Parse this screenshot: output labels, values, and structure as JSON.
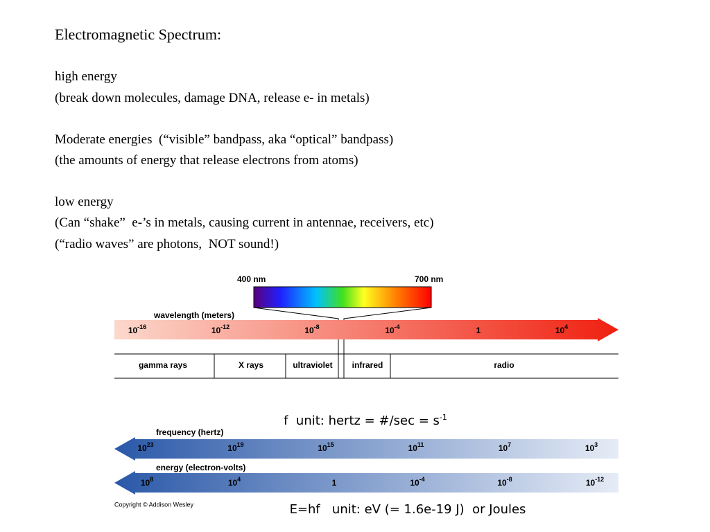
{
  "title": "Electromagnetic Spectrum:",
  "paragraphs": [
    [
      "high energy",
      "(break down molecules, damage DNA, release e- in metals)"
    ],
    [
      "Moderate energies  (“visible” bandpass, aka “optical” bandpass)",
      "(the amounts of energy that release electrons from atoms)"
    ],
    [
      "low energy",
      "(Can “shake”  e-’s in metals, causing current in antennae, receivers, etc)",
      "(“radio waves” are photons,  NOT sound!)"
    ]
  ],
  "diagram": {
    "visible_left": "400 nm",
    "visible_right": "700 nm",
    "wavelength_label": "wavelength (meters)",
    "wavelength_ticks": [
      {
        "base": "10",
        "exp": "-16"
      },
      {
        "base": "10",
        "exp": "-12"
      },
      {
        "base": "10",
        "exp": "-8"
      },
      {
        "base": "10",
        "exp": "-4"
      },
      {
        "base": "1"
      },
      {
        "base": "10",
        "exp": "4"
      }
    ],
    "bands": [
      "gamma rays",
      "X rays",
      "ultraviolet",
      "infrared",
      "radio"
    ],
    "frequency_label": "frequency (hertz)",
    "frequency_ticks": [
      {
        "base": "10",
        "exp": "23"
      },
      {
        "base": "10",
        "exp": "19"
      },
      {
        "base": "10",
        "exp": "15"
      },
      {
        "base": "10",
        "exp": "11"
      },
      {
        "base": "10",
        "exp": "7"
      },
      {
        "base": "10",
        "exp": "3"
      }
    ],
    "energy_label": "energy (electron-volts)",
    "energy_ticks": [
      {
        "base": "10",
        "exp": "8"
      },
      {
        "base": "10",
        "exp": "4"
      },
      {
        "base": "1"
      },
      {
        "base": "10",
        "exp": "-4"
      },
      {
        "base": "10",
        "exp": "-8"
      },
      {
        "base": "10",
        "exp": "-12"
      }
    ],
    "copyright": "Copyright © Addison Wesley"
  },
  "notes": {
    "frequency": {
      "text": "f  unit: hertz = #/sec = s",
      "exp": "-1"
    },
    "energy": "E=hf   unit: eV (= 1.6e-19 J)  or Joules"
  }
}
